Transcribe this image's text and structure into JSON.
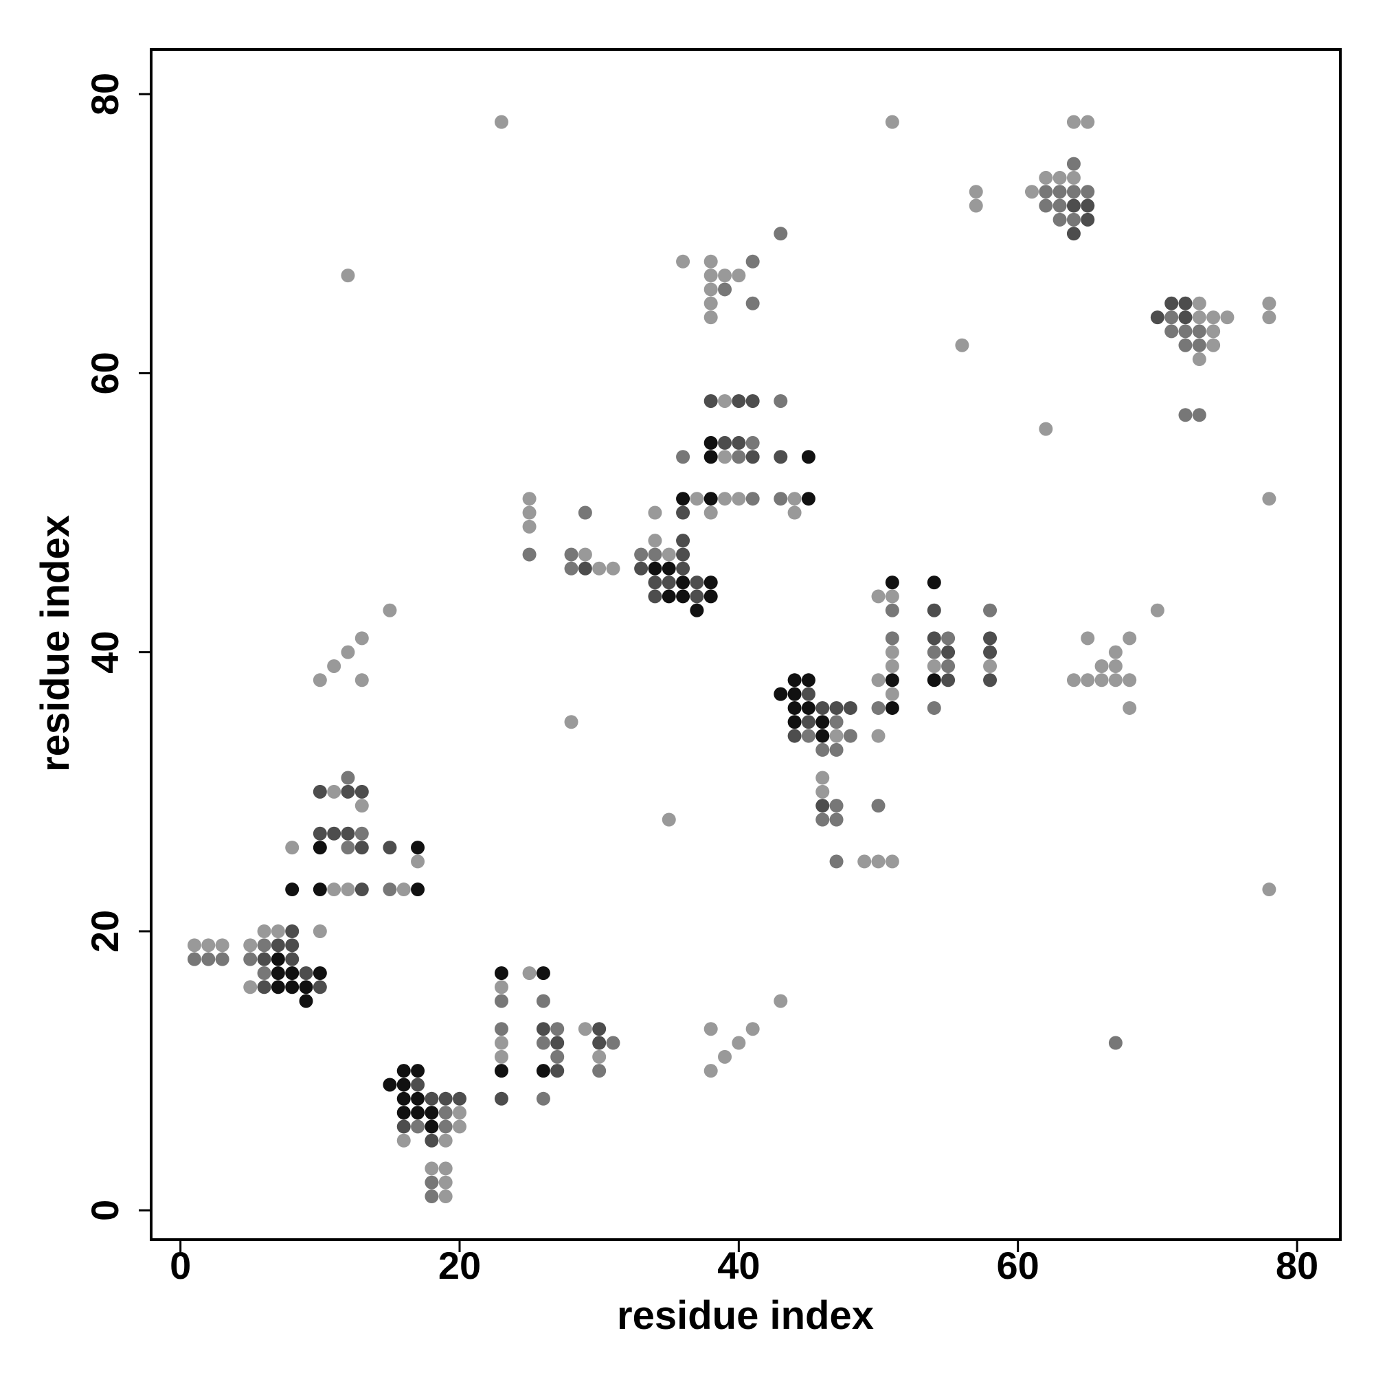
{
  "chart_data": {
    "type": "scatter",
    "x_label": "residue index",
    "y_label": "residue index",
    "xlim": [
      -2.1,
      83.1
    ],
    "ylim": [
      -2.1,
      83.2
    ],
    "xticks": [
      0,
      20,
      40,
      60,
      80
    ],
    "yticks": [
      0,
      20,
      40,
      60,
      80
    ],
    "grid": false,
    "series": [
      {
        "color": "#999999",
        "x": [
          1,
          2,
          3,
          6,
          7,
          5,
          5,
          10,
          11,
          13,
          8,
          17,
          11,
          12,
          16,
          10,
          11,
          12,
          13,
          13,
          15,
          12,
          23,
          20,
          20,
          16,
          19,
          18,
          19,
          19,
          19,
          23,
          23,
          23,
          25,
          29,
          30,
          38,
          38,
          39,
          40,
          41,
          43,
          28,
          35,
          25,
          25,
          25,
          29,
          30,
          31,
          34,
          35,
          34,
          37,
          38,
          39,
          39,
          39,
          40,
          44,
          44,
          36,
          38,
          38,
          38,
          38,
          38,
          39,
          40,
          47,
          46,
          46,
          49,
          50,
          51,
          50,
          50,
          50,
          51,
          51,
          51,
          51,
          51,
          54,
          58,
          56,
          57,
          57,
          62,
          62,
          63,
          64,
          61,
          64,
          65,
          73,
          73,
          74,
          75,
          74,
          74,
          73,
          78,
          78,
          78,
          78,
          70,
          65,
          68,
          67,
          66,
          67,
          64,
          65,
          66,
          67,
          68,
          68
        ],
        "y": [
          19,
          19,
          19,
          20,
          20,
          19,
          16,
          20,
          30,
          29,
          26,
          25,
          23,
          23,
          23,
          38,
          39,
          40,
          41,
          38,
          43,
          67,
          78,
          7,
          6,
          5,
          5,
          3,
          3,
          2,
          1,
          16,
          12,
          11,
          17,
          13,
          11,
          10,
          13,
          11,
          12,
          13,
          15,
          35,
          28,
          51,
          50,
          49,
          47,
          46,
          46,
          48,
          47,
          50,
          51,
          50,
          58,
          54,
          51,
          51,
          51,
          50,
          68,
          68,
          67,
          66,
          65,
          64,
          67,
          67,
          34,
          31,
          30,
          25,
          25,
          25,
          34,
          44,
          38,
          44,
          40,
          39,
          37,
          78,
          39,
          39,
          62,
          73,
          72,
          56,
          74,
          74,
          74,
          73,
          78,
          78,
          65,
          64,
          64,
          64,
          63,
          62,
          61,
          65,
          64,
          51,
          23,
          43,
          41,
          41,
          40,
          39,
          39,
          38,
          38,
          38,
          38,
          38,
          36
        ]
      },
      {
        "color": "#777777",
        "x": [
          1,
          2,
          3,
          6,
          5,
          6,
          12,
          13,
          12,
          15,
          19,
          17,
          19,
          18,
          18,
          23,
          23,
          26,
          26,
          26,
          27,
          27,
          30,
          31,
          25,
          28,
          28,
          29,
          33,
          34,
          36,
          40,
          41,
          41,
          43,
          43,
          39,
          41,
          41,
          43,
          47,
          45,
          48,
          46,
          47,
          46,
          47,
          47,
          47,
          50,
          50,
          51,
          51,
          54,
          54,
          55,
          55,
          58,
          64,
          62,
          63,
          64,
          65,
          62,
          63,
          63,
          64,
          71,
          71,
          72,
          73,
          72,
          73,
          72,
          73,
          67
        ],
        "y": [
          18,
          18,
          18,
          19,
          18,
          17,
          31,
          27,
          26,
          23,
          7,
          6,
          6,
          2,
          1,
          15,
          13,
          15,
          12,
          8,
          13,
          11,
          10,
          12,
          47,
          47,
          46,
          50,
          47,
          47,
          54,
          54,
          55,
          51,
          58,
          51,
          66,
          68,
          65,
          70,
          35,
          34,
          34,
          33,
          33,
          28,
          29,
          28,
          25,
          29,
          36,
          43,
          41,
          40,
          36,
          41,
          39,
          43,
          75,
          73,
          73,
          73,
          73,
          72,
          72,
          71,
          71,
          64,
          63,
          63,
          63,
          62,
          62,
          57,
          57,
          12
        ]
      },
      {
        "color": "#4d4d4d",
        "x": [
          8,
          7,
          8,
          6,
          8,
          9,
          6,
          10,
          10,
          12,
          13,
          10,
          11,
          12,
          13,
          15,
          13,
          17,
          18,
          19,
          20,
          16,
          18,
          23,
          26,
          27,
          27,
          30,
          30,
          29,
          36,
          36,
          33,
          36,
          34,
          35,
          37,
          34,
          37,
          36,
          38,
          39,
          40,
          40,
          41,
          41,
          43,
          45,
          46,
          47,
          48,
          45,
          44,
          46,
          54,
          54,
          55,
          55,
          58,
          58,
          58,
          64,
          65,
          65,
          64,
          71,
          72,
          70,
          72
        ],
        "y": [
          20,
          19,
          19,
          18,
          18,
          17,
          16,
          16,
          30,
          30,
          30,
          27,
          27,
          27,
          26,
          26,
          23,
          9,
          8,
          8,
          8,
          6,
          5,
          8,
          13,
          12,
          10,
          13,
          12,
          46,
          48,
          47,
          46,
          46,
          45,
          45,
          45,
          44,
          44,
          50,
          58,
          55,
          58,
          55,
          58,
          54,
          54,
          37,
          36,
          36,
          36,
          35,
          34,
          29,
          43,
          41,
          40,
          38,
          41,
          40,
          38,
          72,
          72,
          71,
          70,
          65,
          65,
          64,
          64
        ]
      },
      {
        "color": "#111111",
        "x": [
          7,
          7,
          8,
          10,
          7,
          8,
          9,
          9,
          10,
          17,
          8,
          10,
          17,
          16,
          17,
          15,
          16,
          16,
          17,
          16,
          17,
          18,
          18,
          23,
          23,
          26,
          26,
          34,
          35,
          36,
          38,
          35,
          36,
          38,
          37,
          36,
          38,
          38,
          38,
          45,
          45,
          44,
          45,
          43,
          44,
          44,
          45,
          44,
          46,
          46,
          51,
          51,
          51,
          54,
          54
        ],
        "y": [
          18,
          17,
          17,
          17,
          16,
          16,
          16,
          15,
          26,
          26,
          23,
          23,
          23,
          10,
          10,
          9,
          9,
          8,
          8,
          7,
          7,
          7,
          6,
          17,
          10,
          17,
          10,
          46,
          46,
          45,
          45,
          44,
          44,
          44,
          43,
          51,
          55,
          54,
          51,
          54,
          51,
          38,
          38,
          37,
          37,
          36,
          36,
          35,
          35,
          34,
          45,
          38,
          36,
          45,
          38
        ]
      }
    ]
  }
}
